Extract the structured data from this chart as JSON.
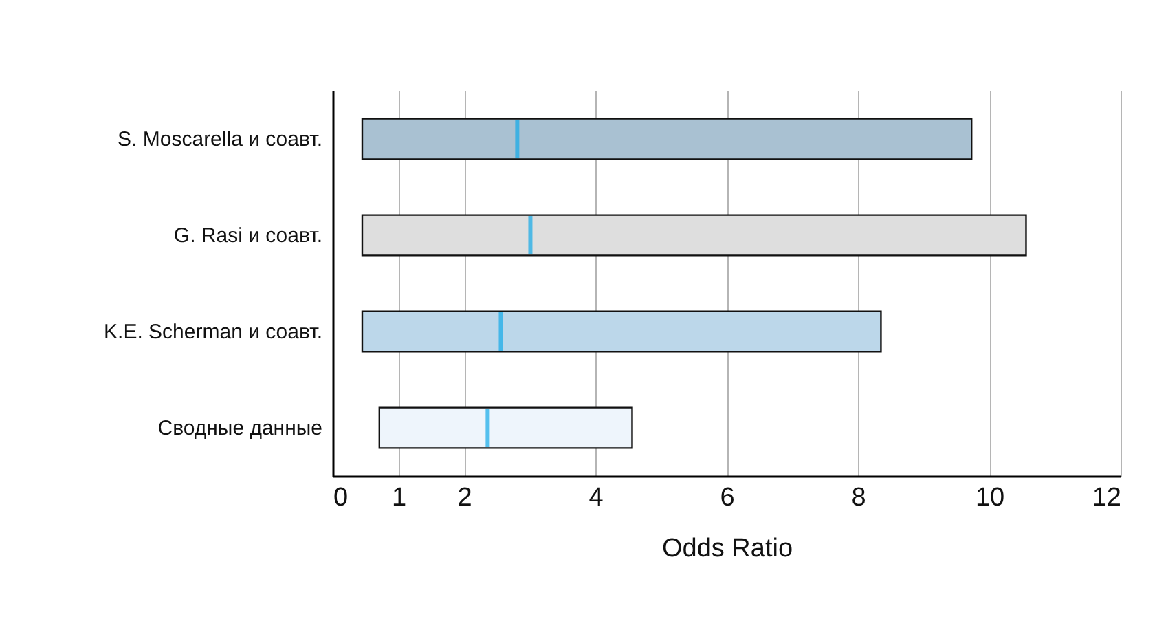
{
  "chart_data": {
    "type": "box",
    "orientation": "horizontal",
    "xlabel": "Odds Ratio",
    "categories": [
      "S. Moscarella и соавт.",
      "G. Rasi и соавт.",
      "K.E. Scherman и соавт.",
      "Сводные данные"
    ],
    "boxes": [
      {
        "low": 0.45,
        "q1": 0.45,
        "median": 2.81,
        "q3": 9.73,
        "high": 9.73
      },
      {
        "low": 0.45,
        "q1": 0.45,
        "median": 3.01,
        "q3": 10.56,
        "high": 10.56
      },
      {
        "low": 0.45,
        "q1": 0.45,
        "median": 2.56,
        "q3": 8.35,
        "high": 8.35
      },
      {
        "low": 0.71,
        "q1": 0.71,
        "median": 2.36,
        "q3": 4.56,
        "high": 4.56
      }
    ],
    "colors": [
      "#a9c1d2",
      "#dedede",
      "#bcd7ea",
      "#eef5fc"
    ],
    "color": "#13aae8",
    "xlim": [
      0,
      12
    ],
    "xticks": [
      0,
      1,
      2,
      4,
      6,
      8,
      10,
      12
    ],
    "grid": "x"
  }
}
